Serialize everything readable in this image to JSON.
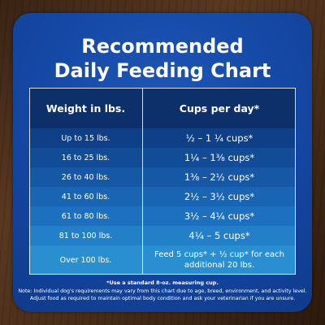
{
  "title": {
    "line1": "Recommended",
    "line2": "Daily Feeding Chart"
  },
  "table": {
    "headers": [
      "Weight in lbs.",
      "Cups per day*"
    ],
    "rows": [
      [
        "Up to 15 lbs.",
        "½ – 1 ¼ cups*"
      ],
      [
        "16 to 25 lbs.",
        "1¼ – 1⅜  cups*"
      ],
      [
        "26 to 40 lbs.",
        "1⅜ – 2½ cups*"
      ],
      [
        "41 to 60 lbs.",
        "2½ – 3½ cups*"
      ],
      [
        "61 to 80 lbs.",
        "3½ – 4¼ cups*"
      ],
      [
        "81 to 100 lbs.",
        "4¼ – 5 cups*"
      ],
      [
        "Over 100 lbs.",
        "Feed 5 cups* + ½ cup* for each additional 20 lbs."
      ]
    ]
  },
  "footnotes": {
    "measure": "*Use a standard 8-oz. measuring cup.",
    "note_line1": "Note: Individual dog's requirements may vary from this chart due to age, breed, environment, and activity level.",
    "note_line2": "Adjust food as required to maintain optimal body condition and ask your veterinarian if you are unsure."
  },
  "colors": {
    "card": "#1446a2",
    "header_row": "#0d2f6a",
    "row_gradient": [
      "#0f3f86",
      "#124b96",
      "#1657a6",
      "#1a64b4",
      "#1d70bf",
      "#2380c8",
      "#2a8fd1"
    ],
    "text": "#ffffff"
  }
}
